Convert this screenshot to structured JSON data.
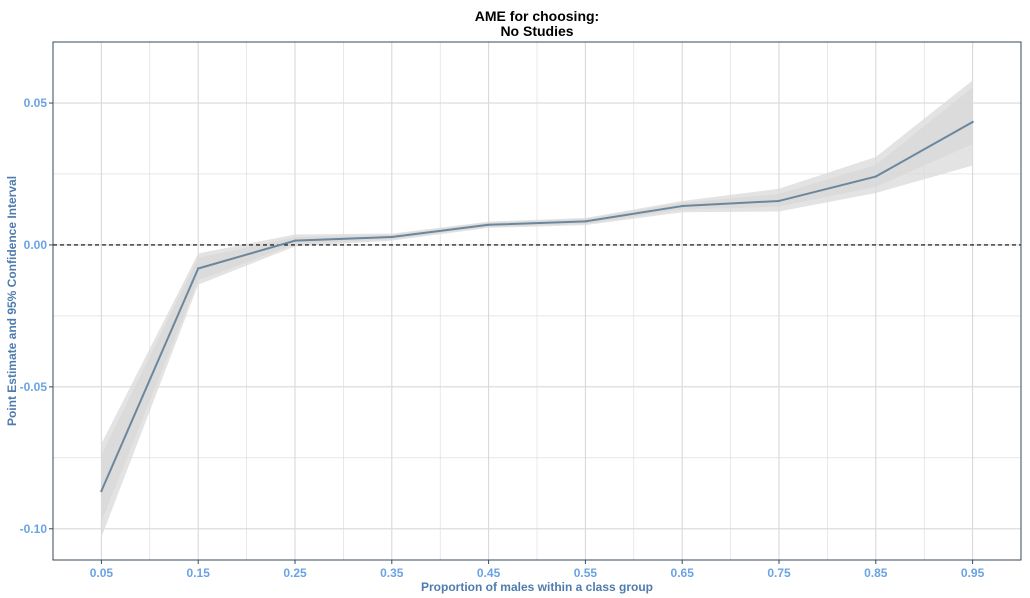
{
  "chart_data": {
    "type": "line",
    "title": [
      "AME for choosing:",
      "No Studies"
    ],
    "xlabel": "Proportion of males within a class group",
    "ylabel": "Point Estimate and 95% Confidence Interval",
    "x": [
      0.05,
      0.15,
      0.25,
      0.35,
      0.45,
      0.55,
      0.65,
      0.75,
      0.85,
      0.95
    ],
    "x_tick_labels": [
      "0.05",
      "0.15",
      "0.25",
      "0.35",
      "0.45",
      "0.55",
      "0.65",
      "0.75",
      "0.85",
      "0.95"
    ],
    "y_ticks": [
      0.05,
      0.0,
      -0.05,
      -0.1
    ],
    "y_tick_labels": [
      "0.05",
      "0.00",
      "-0.05",
      "-0.10"
    ],
    "xlim": [
      0.0,
      1.0
    ],
    "ylim": [
      -0.111,
      0.0715
    ],
    "series": [
      {
        "values": [
          -0.0867,
          -0.0083,
          0.0015,
          0.0028,
          0.0071,
          0.0083,
          0.0137,
          0.0155,
          0.0241,
          0.0433
        ],
        "ci_inner_lower": [
          -0.0975,
          -0.0125,
          0.0003,
          0.002,
          0.0064,
          0.0074,
          0.0125,
          0.0135,
          0.0205,
          0.0355
        ],
        "ci_inner_upper": [
          -0.074,
          -0.0045,
          0.0027,
          0.0036,
          0.0078,
          0.0092,
          0.0148,
          0.018,
          0.0282,
          0.0555
        ],
        "ci_outer_lower": [
          -0.103,
          -0.014,
          -0.0005,
          0.0015,
          0.006,
          0.007,
          0.0115,
          0.0118,
          0.0183,
          0.028
        ],
        "ci_outer_upper": [
          -0.07,
          -0.003,
          0.0037,
          0.004,
          0.0082,
          0.0095,
          0.0155,
          0.0198,
          0.031,
          0.058
        ]
      }
    ],
    "reference_line": 0,
    "grid": true,
    "colors": {
      "line": "#6b879d",
      "ribbon": "#d9d9d9",
      "grid": "#d9d9d9",
      "tick_label": "#6aa3e3",
      "axis_title": "#4f7cad",
      "panel_border": "#34495e",
      "reference": "#000000"
    }
  }
}
